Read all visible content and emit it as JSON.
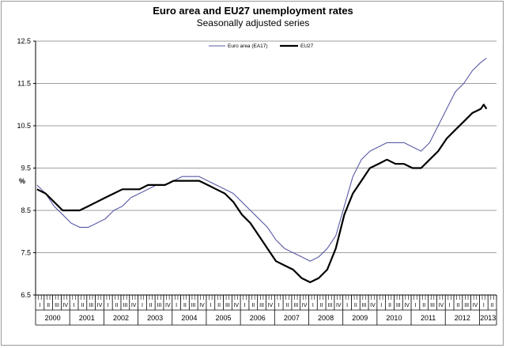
{
  "chart_data": {
    "type": "line",
    "title": "Euro area and EU27 unemployment rates",
    "subtitle": "Seasonally adjusted series",
    "ylabel": "%",
    "ylim": [
      6.5,
      12.5
    ],
    "yticks": [
      "12.5",
      "11.5",
      "10.5",
      "9.5",
      "8.5",
      "7.5",
      "6.5"
    ],
    "quarter_labels": [
      "I",
      "II",
      "III",
      "IV"
    ],
    "years": [
      "2000",
      "2001",
      "2002",
      "2003",
      "2004",
      "2005",
      "2006",
      "2007",
      "2008",
      "2009",
      "2010",
      "2011",
      "2012",
      "2013"
    ],
    "legend_position": "top-center",
    "grid": "horizontal",
    "x_start": "2000-01",
    "x_end": "2013-03",
    "series": [
      {
        "name": "Euro area (EA17)",
        "color": "#5a5aa6",
        "points": [
          [
            "2000-01",
            9.1
          ],
          [
            "2000-04",
            8.9
          ],
          [
            "2000-07",
            8.6
          ],
          [
            "2000-10",
            8.4
          ],
          [
            "2001-01",
            8.2
          ],
          [
            "2001-04",
            8.1
          ],
          [
            "2001-07",
            8.1
          ],
          [
            "2001-10",
            8.2
          ],
          [
            "2002-01",
            8.3
          ],
          [
            "2002-04",
            8.5
          ],
          [
            "2002-07",
            8.6
          ],
          [
            "2002-10",
            8.8
          ],
          [
            "2003-01",
            8.9
          ],
          [
            "2003-04",
            9.0
          ],
          [
            "2003-07",
            9.1
          ],
          [
            "2003-10",
            9.1
          ],
          [
            "2004-01",
            9.2
          ],
          [
            "2004-04",
            9.3
          ],
          [
            "2004-07",
            9.3
          ],
          [
            "2004-10",
            9.3
          ],
          [
            "2005-01",
            9.2
          ],
          [
            "2005-04",
            9.1
          ],
          [
            "2005-07",
            9.0
          ],
          [
            "2005-10",
            8.9
          ],
          [
            "2006-01",
            8.7
          ],
          [
            "2006-04",
            8.5
          ],
          [
            "2006-07",
            8.3
          ],
          [
            "2006-10",
            8.1
          ],
          [
            "2007-01",
            7.8
          ],
          [
            "2007-04",
            7.6
          ],
          [
            "2007-07",
            7.5
          ],
          [
            "2007-10",
            7.4
          ],
          [
            "2008-01",
            7.3
          ],
          [
            "2008-04",
            7.4
          ],
          [
            "2008-07",
            7.6
          ],
          [
            "2008-10",
            7.9
          ],
          [
            "2009-01",
            8.6
          ],
          [
            "2009-04",
            9.3
          ],
          [
            "2009-07",
            9.7
          ],
          [
            "2009-10",
            9.9
          ],
          [
            "2010-01",
            10.0
          ],
          [
            "2010-04",
            10.1
          ],
          [
            "2010-07",
            10.1
          ],
          [
            "2010-10",
            10.1
          ],
          [
            "2011-01",
            10.0
          ],
          [
            "2011-04",
            9.9
          ],
          [
            "2011-07",
            10.1
          ],
          [
            "2011-10",
            10.5
          ],
          [
            "2012-01",
            10.9
          ],
          [
            "2012-04",
            11.3
          ],
          [
            "2012-07",
            11.5
          ],
          [
            "2012-10",
            11.8
          ],
          [
            "2013-01",
            12.0
          ],
          [
            "2013-03",
            12.1
          ]
        ]
      },
      {
        "name": "EU27",
        "color": "#000000",
        "points": [
          [
            "2000-01",
            9.0
          ],
          [
            "2000-04",
            8.9
          ],
          [
            "2000-07",
            8.7
          ],
          [
            "2000-10",
            8.5
          ],
          [
            "2001-01",
            8.5
          ],
          [
            "2001-04",
            8.5
          ],
          [
            "2001-07",
            8.6
          ],
          [
            "2001-10",
            8.7
          ],
          [
            "2002-01",
            8.8
          ],
          [
            "2002-04",
            8.9
          ],
          [
            "2002-07",
            9.0
          ],
          [
            "2002-10",
            9.0
          ],
          [
            "2003-01",
            9.0
          ],
          [
            "2003-04",
            9.1
          ],
          [
            "2003-07",
            9.1
          ],
          [
            "2003-10",
            9.1
          ],
          [
            "2004-01",
            9.2
          ],
          [
            "2004-04",
            9.2
          ],
          [
            "2004-07",
            9.2
          ],
          [
            "2004-10",
            9.2
          ],
          [
            "2005-01",
            9.1
          ],
          [
            "2005-04",
            9.0
          ],
          [
            "2005-07",
            8.9
          ],
          [
            "2005-10",
            8.7
          ],
          [
            "2006-01",
            8.4
          ],
          [
            "2006-04",
            8.2
          ],
          [
            "2006-07",
            7.9
          ],
          [
            "2006-10",
            7.6
          ],
          [
            "2007-01",
            7.3
          ],
          [
            "2007-04",
            7.2
          ],
          [
            "2007-07",
            7.1
          ],
          [
            "2007-10",
            6.9
          ],
          [
            "2008-01",
            6.8
          ],
          [
            "2008-04",
            6.9
          ],
          [
            "2008-07",
            7.1
          ],
          [
            "2008-10",
            7.6
          ],
          [
            "2009-01",
            8.4
          ],
          [
            "2009-04",
            8.9
          ],
          [
            "2009-07",
            9.2
          ],
          [
            "2009-10",
            9.5
          ],
          [
            "2010-01",
            9.6
          ],
          [
            "2010-04",
            9.7
          ],
          [
            "2010-07",
            9.6
          ],
          [
            "2010-10",
            9.6
          ],
          [
            "2011-01",
            9.5
          ],
          [
            "2011-04",
            9.5
          ],
          [
            "2011-07",
            9.7
          ],
          [
            "2011-10",
            9.9
          ],
          [
            "2012-01",
            10.2
          ],
          [
            "2012-04",
            10.4
          ],
          [
            "2012-07",
            10.6
          ],
          [
            "2012-10",
            10.8
          ],
          [
            "2013-01",
            10.9
          ],
          [
            "2013-02",
            11.0
          ],
          [
            "2013-03",
            10.9
          ]
        ]
      }
    ]
  }
}
